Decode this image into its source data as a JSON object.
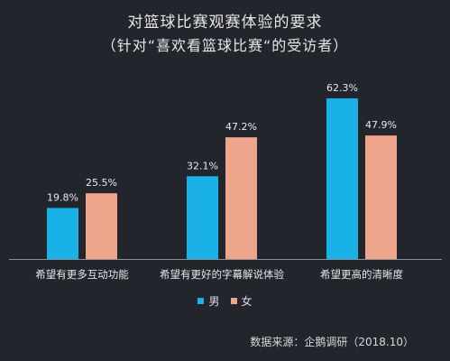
{
  "colors": {
    "background": "#22252c",
    "male": "#1ab0e8",
    "female": "#eea58c",
    "axis": "#8a8d93"
  },
  "chart_data": {
    "type": "bar",
    "title": "对篮球比赛观赛体验的要求",
    "subtitle": "（针对“喜欢看篮球比赛“的受访者）",
    "categories": [
      "希望有更多互动功能",
      "希望有更好的字幕解说体验",
      "希望更高的清晰度"
    ],
    "series": [
      {
        "name": "男",
        "values": [
          19.8,
          32.1,
          62.3
        ],
        "labels": [
          "19.8%",
          "32.1%",
          "62.3%"
        ]
      },
      {
        "name": "女",
        "values": [
          25.5,
          47.2,
          47.9
        ],
        "labels": [
          "25.5%",
          "47.2%",
          "47.9%"
        ]
      }
    ],
    "ylim": [
      0,
      70
    ],
    "grid": false,
    "legend_position": "bottom"
  },
  "footer": {
    "source": "数据来源：企鹅调研（2018.10）"
  }
}
